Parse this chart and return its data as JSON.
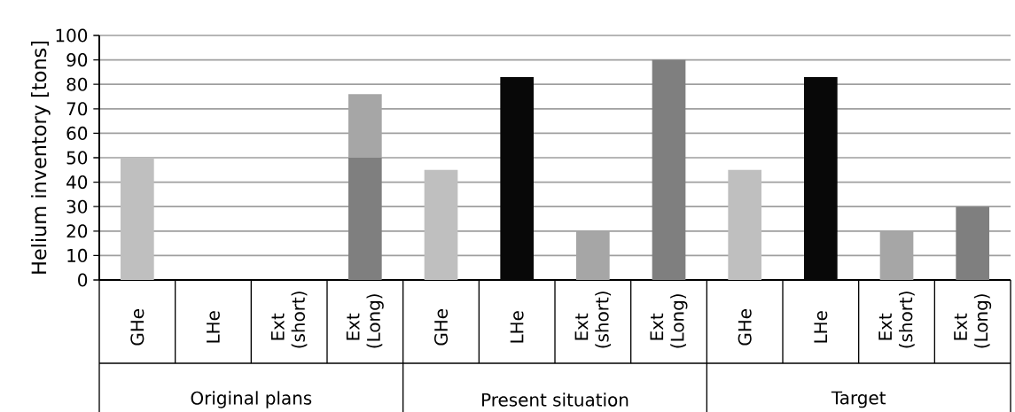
{
  "chart_data": {
    "type": "bar",
    "stacked": true,
    "ylabel": "Helium inventory [tons]",
    "categories": [
      "GHe",
      "LHe",
      "Ext (short)",
      "Ext (Long)",
      "GHe",
      "LHe",
      "Ext (short)",
      "Ext (Long)",
      "GHe",
      "LHe",
      "Ext (short)",
      "Ext (Long)"
    ],
    "annotations": [
      "Original plans",
      "Present situation",
      "Target"
    ],
    "series": [
      {
        "colors": [
          "#bfbfbf",
          "#080808",
          "#a6a6a6",
          "#7f7f7f",
          "#bfbfbf",
          "#080808",
          "#a6a6a6",
          "#7f7f7f",
          "#bfbfbf",
          "#080808",
          "#a6a6a6",
          "#7f7f7f"
        ],
        "values": [
          50,
          null,
          null,
          50,
          45,
          83,
          20,
          90,
          45,
          83,
          20,
          30
        ]
      },
      {
        "colors": [
          "#a6a6a6",
          "#a6a6a6",
          "#a6a6a6",
          "#a6a6a6",
          "#a6a6a6",
          "#a6a6a6",
          "#a6a6a6",
          "#a6a6a6",
          "#a6a6a6",
          "#a6a6a6",
          "#a6a6a6",
          "#a6a6a6"
        ],
        "values": [
          null,
          null,
          null,
          26,
          null,
          null,
          null,
          null,
          null,
          null,
          null,
          null
        ]
      }
    ],
    "ylim": [
      0,
      100
    ],
    "yticks": [
      0,
      10,
      20,
      30,
      40,
      50,
      60,
      70,
      80,
      90,
      100
    ],
    "grid": "y"
  }
}
